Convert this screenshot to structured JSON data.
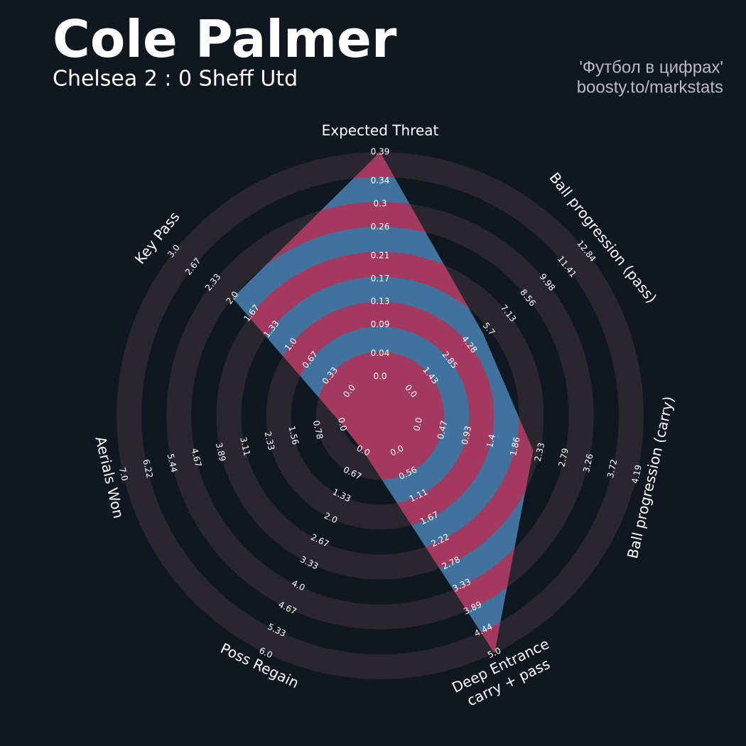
{
  "chart_data": {
    "type": "radar",
    "title": "Cole Palmer",
    "subtitle": "Chelsea 2 : 0 Sheff Utd",
    "credits": [
      "'Футбол в цифрах'",
      "boosty.to/markstats"
    ],
    "background": "#0f1820",
    "band_color": "#29262d",
    "color": "#41729e",
    "ring_color": "#a3395e",
    "params": [
      {
        "lines": [
          "Expected Threat"
        ],
        "ticks": [
          {
            "value": 0,
            "label": "0.0"
          },
          0.04,
          0.09,
          0.13,
          0.17,
          0.21,
          0.26,
          0.3,
          0.34,
          0.39
        ]
      },
      {
        "lines": [
          "Ball progression (pass)"
        ],
        "ticks": [
          {
            "value": 0,
            "label": "0.0"
          },
          1.43,
          2.85,
          4.28,
          5.7,
          7.13,
          8.56,
          9.98,
          11.41,
          12.84
        ]
      },
      {
        "lines": [
          "Ball progression (carry)"
        ],
        "ticks": [
          {
            "value": 0,
            "label": "0.0"
          },
          0.47,
          0.93,
          1.4,
          1.86,
          2.33,
          2.79,
          3.26,
          3.72,
          4.19
        ]
      },
      {
        "lines": [
          "Deep Entrance",
          "carry + pass"
        ],
        "ticks": [
          {
            "value": 0,
            "label": "0.0"
          },
          0.56,
          1.11,
          1.67,
          2.22,
          2.78,
          3.33,
          3.89,
          4.44,
          {
            "value": 5,
            "label": "5.0"
          }
        ]
      },
      {
        "lines": [
          "Poss Regain"
        ],
        "ticks": [
          {
            "value": 0,
            "label": "0.0"
          },
          0.67,
          1.33,
          {
            "value": 2,
            "label": "2.0"
          },
          2.67,
          3.33,
          {
            "value": 4,
            "label": "4.0"
          },
          4.67,
          5.33,
          {
            "value": 6,
            "label": "6.0"
          }
        ]
      },
      {
        "lines": [
          "Aerials Won"
        ],
        "ticks": [
          {
            "value": 0,
            "label": "0.0"
          },
          0.78,
          1.56,
          2.33,
          3.11,
          3.89,
          4.67,
          5.44,
          6.22,
          {
            "value": 7,
            "label": "7.0"
          }
        ]
      },
      {
        "lines": [
          "Key Pass"
        ],
        "ticks": [
          {
            "value": 0,
            "label": "0.0"
          },
          0.33,
          0.67,
          {
            "value": 1,
            "label": "1.0"
          },
          1.33,
          1.67,
          {
            "value": 2,
            "label": "2.0"
          },
          2.33,
          2.67,
          {
            "value": 3,
            "label": "3.0"
          }
        ]
      }
    ],
    "values": [
      0.39,
      5.3,
      2.2,
      5.0,
      0,
      0,
      2
    ]
  }
}
